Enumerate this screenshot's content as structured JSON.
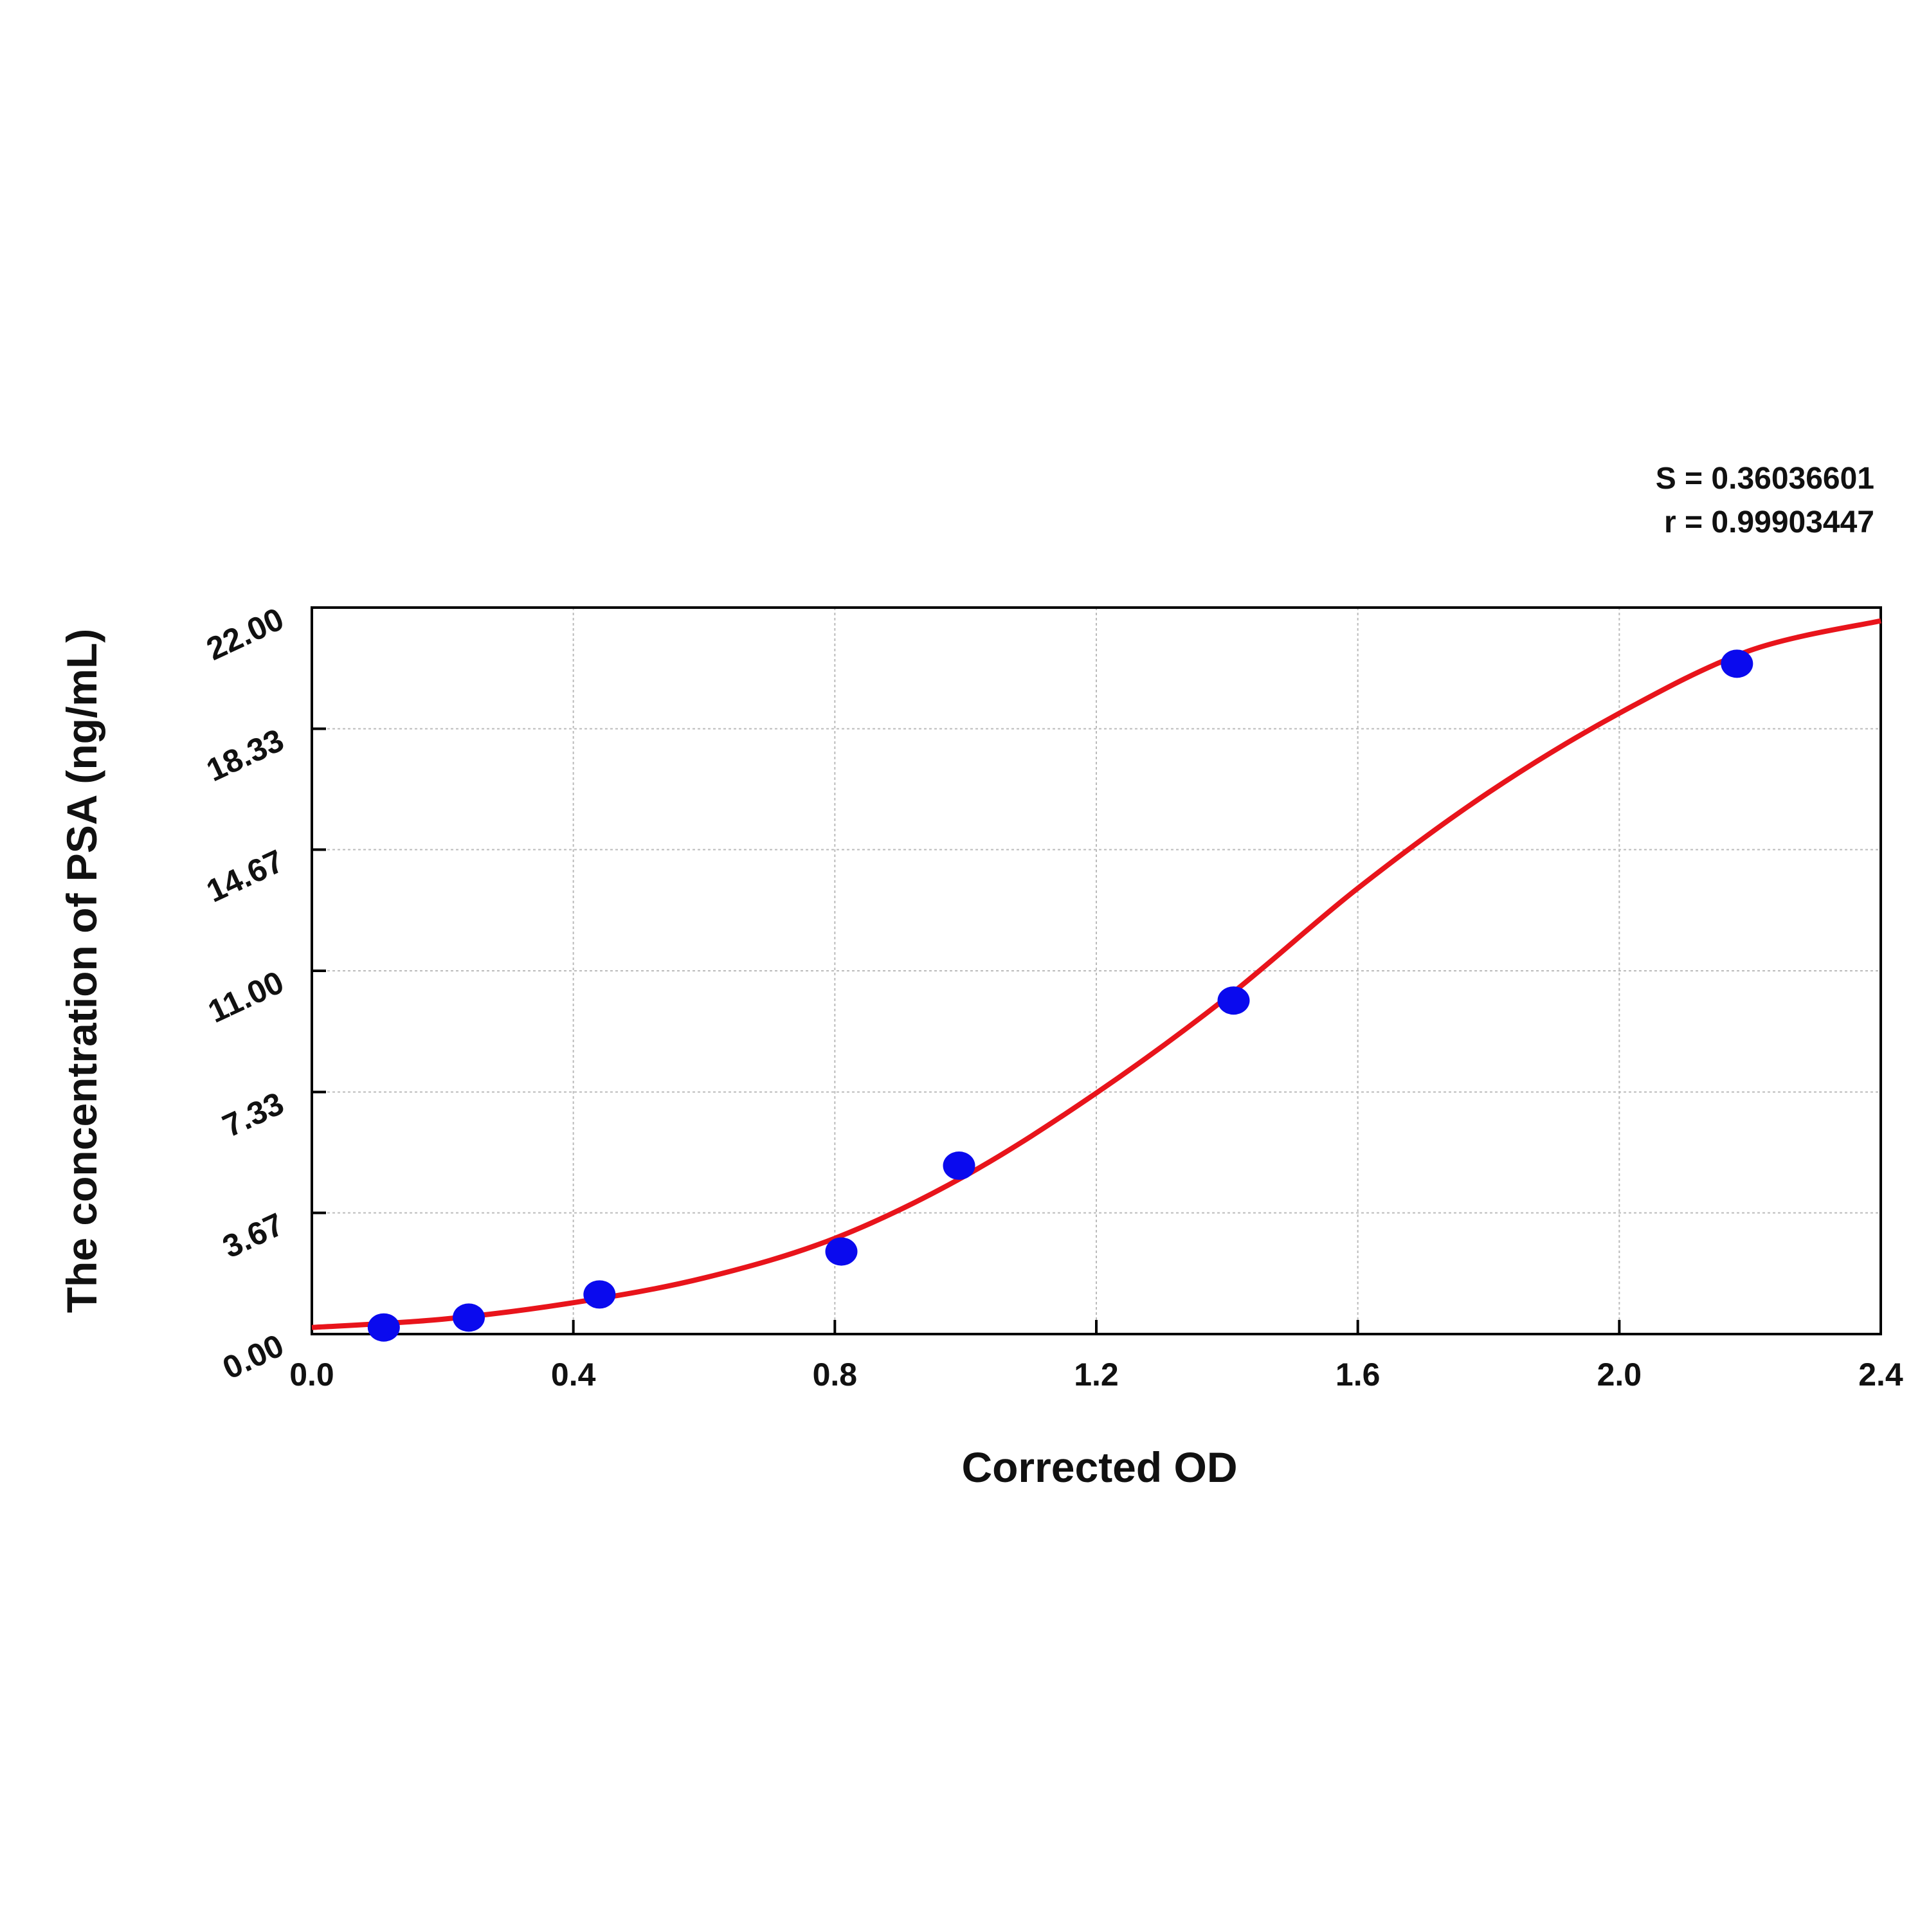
{
  "chart_data": {
    "type": "scatter",
    "annotations": [
      "S = 0.36036601",
      "r = 0.99903447"
    ],
    "x_label": "Corrected OD",
    "y_label": "The concentration of PSA (ng/mL)",
    "points": {
      "color": "#0a0aee",
      "x": [
        0.11,
        0.24,
        0.44,
        0.81,
        0.99,
        1.41,
        2.18
      ],
      "y": [
        0.2,
        0.5,
        1.2,
        2.5,
        5.1,
        10.1,
        20.3
      ]
    },
    "curve": {
      "color": "#e8141b",
      "x": [
        0,
        0.2,
        0.4,
        0.6,
        0.8,
        1.0,
        1.2,
        1.4,
        1.6,
        1.8,
        2.0,
        2.2,
        2.4
      ],
      "y": [
        0.2,
        0.45,
        0.95,
        1.7,
        2.9,
        4.8,
        7.3,
        10.2,
        13.5,
        16.4,
        18.8,
        20.7,
        21.6
      ]
    },
    "xlim": [
      0,
      2.4
    ],
    "ylim": [
      0,
      22
    ],
    "xticks": [
      {
        "value": 0,
        "label": "0.0"
      },
      0.4,
      0.8,
      1.2,
      1.6,
      {
        "value": 2,
        "label": "2.0"
      },
      2.4
    ],
    "yticks": [
      {
        "value": 0,
        "label": "0.00"
      },
      3.67,
      7.33,
      {
        "value": 11,
        "label": "11.00"
      },
      14.67,
      18.33,
      {
        "value": 22,
        "label": "22.00"
      }
    ],
    "grid": true
  }
}
